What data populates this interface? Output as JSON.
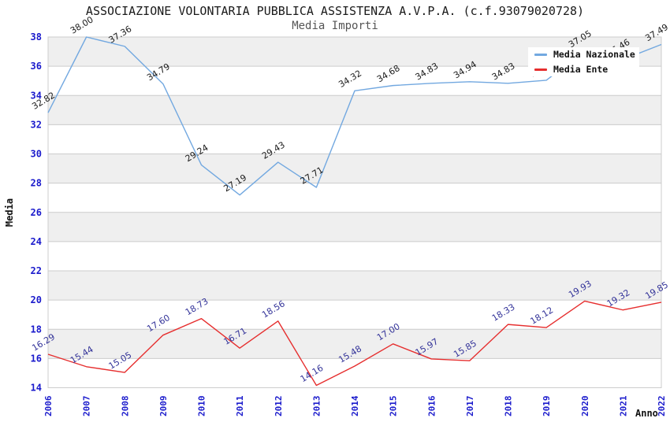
{
  "chart_data": {
    "type": "line",
    "title": "ASSOCIAZIONE VOLONTARIA PUBBLICA ASSISTENZA A.V.P.A. (c.f.93079020728)",
    "subtitle": "Media Importi",
    "xlabel": "Anno",
    "ylabel": "Media",
    "x": [
      "2006",
      "2007",
      "2008",
      "2009",
      "2010",
      "2011",
      "2012",
      "2013",
      "2014",
      "2015",
      "2016",
      "2017",
      "2018",
      "2019",
      "2020",
      "2021",
      "2022"
    ],
    "ylim": [
      14,
      38
    ],
    "ytick_step": 2,
    "grid": "horizontal-bands",
    "legend_position": "top-right-inside",
    "series": [
      {
        "name": "Media Nazionale",
        "color": "#72a8e0",
        "label_color": "#1a1a1a",
        "values": [
          32.82,
          38.0,
          37.36,
          34.79,
          29.24,
          27.19,
          29.43,
          27.71,
          34.32,
          34.68,
          34.83,
          34.94,
          34.83,
          35.04,
          37.05,
          36.46,
          37.49
        ],
        "label_hidden_by_legend_indices": [
          13
        ]
      },
      {
        "name": "Media Ente",
        "color": "#e62e2e",
        "label_color": "#333399",
        "values": [
          16.29,
          15.44,
          15.05,
          17.6,
          18.73,
          16.71,
          18.56,
          14.16,
          15.48,
          17.0,
          15.97,
          15.85,
          18.33,
          18.12,
          19.93,
          19.32,
          19.85
        ]
      }
    ],
    "style": {
      "tick_label_color": "#1a1acc",
      "band_color": "#efefef",
      "grid_color": "#cccccc",
      "background_color": "#ffffff",
      "title_color": "#1a1a1a",
      "subtitle_color": "#555555",
      "legend_background": "#ffffff"
    }
  }
}
